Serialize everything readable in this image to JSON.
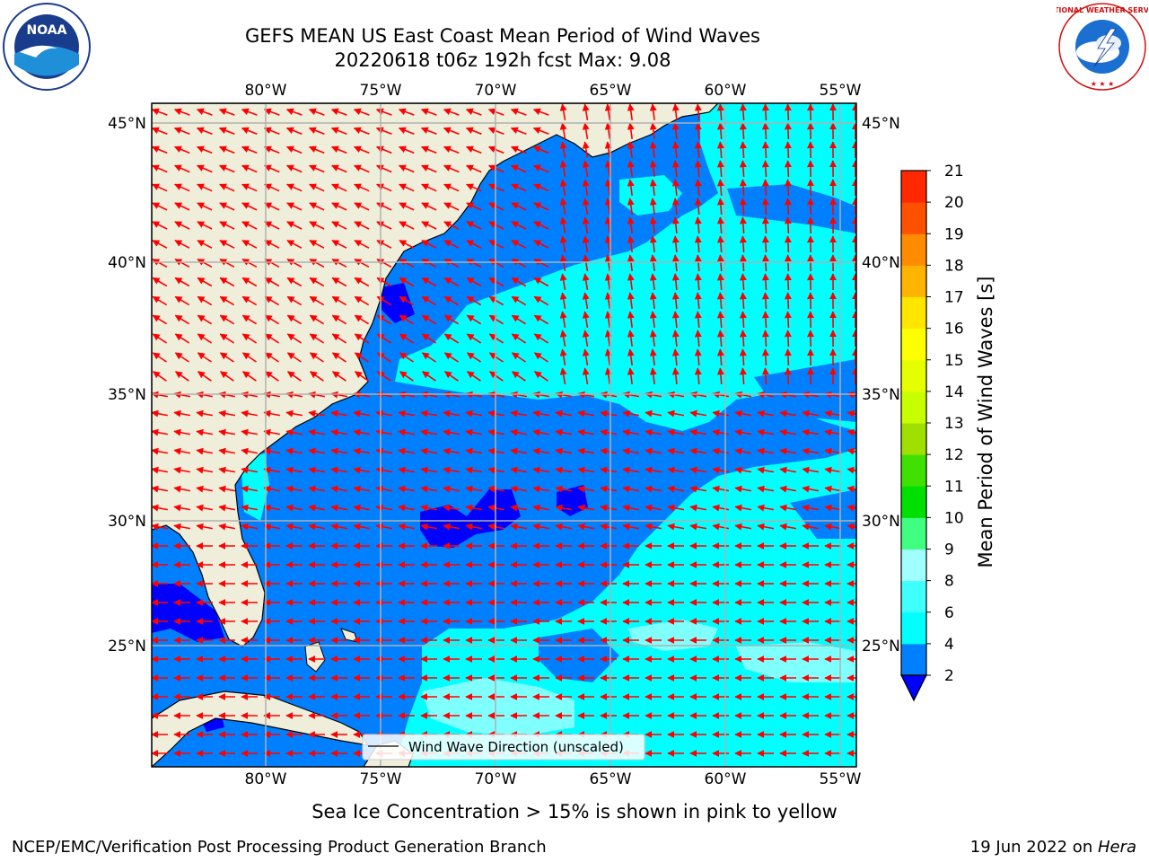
{
  "title": {
    "line1": "GEFS MEAN US East Coast Mean Period of Wind Waves",
    "line2": "20220618 t06z 192h fcst   Max: 9.08"
  },
  "map": {
    "lon_ticks": [
      "80°W",
      "75°W",
      "70°W",
      "65°W",
      "60°W",
      "55°W"
    ],
    "lat_ticks": [
      "45°N",
      "40°N",
      "35°N",
      "30°N",
      "25°N"
    ],
    "extent": {
      "lon_min": -85,
      "lon_max": -54.3,
      "lat_min": 20.2,
      "lat_max": 45.8
    },
    "legend_label": "Wind Wave Direction (unscaled)",
    "colors": {
      "land": "#efeedb",
      "band_0_2": "#0000ff",
      "band_2_4": "#0080ff",
      "band_4_6": "#00ffff",
      "band_6_8": "#80ffff",
      "arrows": "#ff0000",
      "grid": "#b0b0b0"
    }
  },
  "colorbar": {
    "label": "Mean Period of Wind Waves [s]",
    "ticks": [
      "2",
      "4",
      "6",
      "8",
      "9",
      "10",
      "11",
      "12",
      "13",
      "14",
      "15",
      "16",
      "17",
      "18",
      "19",
      "20",
      "21"
    ],
    "colors": [
      "#0080ff",
      "#00ffff",
      "#40ffff",
      "#a0ffff",
      "#40ff80",
      "#00e000",
      "#40e000",
      "#a0e000",
      "#c8ff00",
      "#e6ff00",
      "#ffff00",
      "#ffe600",
      "#ffb400",
      "#ff8c00",
      "#ff5000",
      "#ff2800"
    ],
    "extend_color": "#0000ff"
  },
  "footer": {
    "ice_note": "Sea Ice Concentration > 15% is shown in pink to yellow",
    "credit": "NCEP/EMC/Verification Post Processing Product Generation Branch",
    "date": "19 Jun 2022 on ",
    "host": "Hera"
  },
  "logos": {
    "noaa": "NOAA",
    "nws_ring": "NATIONAL WEATHER SERVICE"
  }
}
